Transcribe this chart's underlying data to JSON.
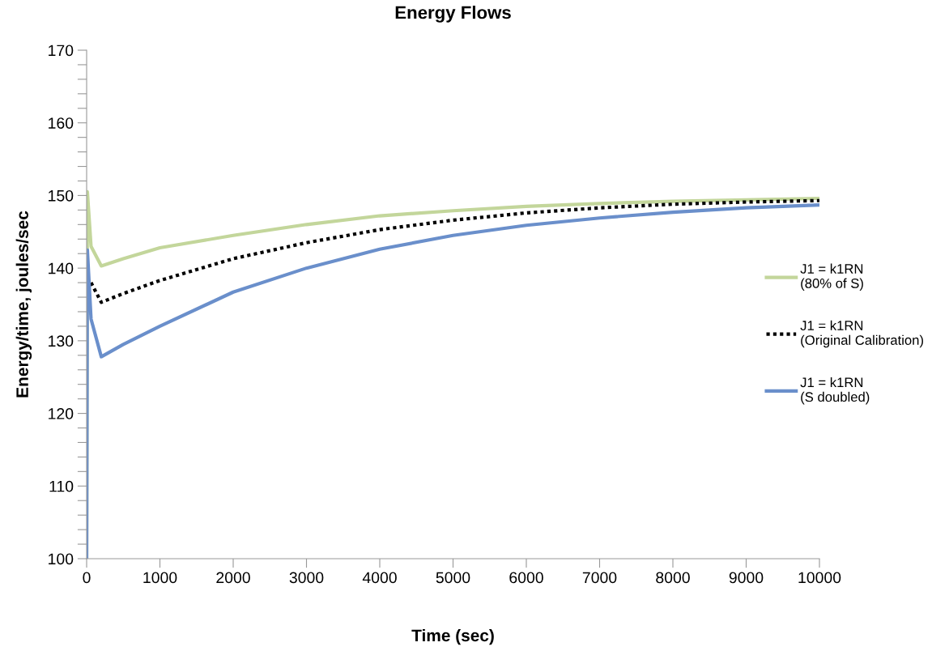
{
  "chart_data": {
    "type": "line",
    "title": "Energy Flows",
    "xlabel": "Time (sec)",
    "ylabel": "Energy/time, joules/sec",
    "xlim": [
      0,
      10000
    ],
    "xticks": [
      0,
      1000,
      2000,
      3000,
      4000,
      5000,
      6000,
      7000,
      8000,
      9000,
      10000
    ],
    "ylim": [
      100,
      170
    ],
    "yticks": [
      100,
      {
        "value": 102,
        "label": null
      },
      {
        "value": 104,
        "label": null
      },
      {
        "value": 106,
        "label": null
      },
      {
        "value": 108,
        "label": null
      },
      110,
      {
        "value": 112,
        "label": null
      },
      {
        "value": 114,
        "label": null
      },
      {
        "value": 116,
        "label": null
      },
      {
        "value": 118,
        "label": null
      },
      120,
      {
        "value": 122,
        "label": null
      },
      {
        "value": 124,
        "label": null
      },
      {
        "value": 126,
        "label": null
      },
      {
        "value": 128,
        "label": null
      },
      130,
      {
        "value": 132,
        "label": null
      },
      {
        "value": 134,
        "label": null
      },
      {
        "value": 136,
        "label": null
      },
      {
        "value": 138,
        "label": null
      },
      140,
      {
        "value": 142,
        "label": null
      },
      {
        "value": 144,
        "label": null
      },
      {
        "value": 146,
        "label": null
      },
      {
        "value": 148,
        "label": null
      },
      150,
      {
        "value": 152,
        "label": null
      },
      {
        "value": 154,
        "label": null
      },
      {
        "value": 156,
        "label": null
      },
      {
        "value": 158,
        "label": null
      },
      160,
      {
        "value": 162,
        "label": null
      },
      {
        "value": 164,
        "label": null
      },
      {
        "value": 166,
        "label": null
      },
      {
        "value": 168,
        "label": null
      },
      170
    ],
    "grid": false,
    "legend": "right",
    "marker": "none",
    "x": [
      0,
      10,
      60,
      200,
      500,
      1000,
      2000,
      3000,
      4000,
      5000,
      6000,
      7000,
      8000,
      9000,
      10000
    ],
    "series": [
      {
        "name": "J1 = k1RN\n(80% of S)",
        "color": "#c3d69b",
        "line_style": "solid",
        "values": [
          100,
          150.5,
          143,
          140.3,
          141.3,
          142.8,
          144.5,
          146,
          147.2,
          147.9,
          148.5,
          148.9,
          149.2,
          149.4,
          149.6
        ]
      },
      {
        "name": "J1 = k1RN\n(Original Calibration)",
        "color": "#000000",
        "line_style": "dotted",
        "values": [
          null,
          null,
          138,
          135.3,
          136.5,
          138.3,
          141.3,
          143.5,
          145.3,
          146.6,
          147.6,
          148.3,
          148.8,
          149.1,
          149.3
        ]
      },
      {
        "name": "J1 = k1RN\n(S doubled)",
        "color": "#6a8fcb",
        "line_style": "solid",
        "values": [
          100,
          142.5,
          133,
          127.8,
          129.5,
          132,
          136.7,
          140,
          142.6,
          144.5,
          145.9,
          146.9,
          147.7,
          148.3,
          148.7
        ]
      }
    ]
  }
}
